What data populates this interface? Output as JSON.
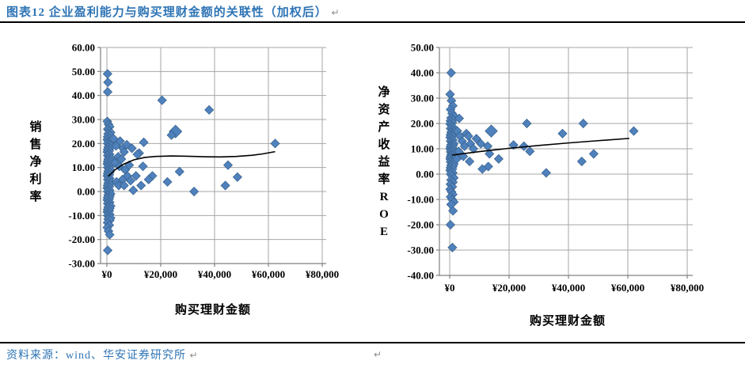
{
  "header": {
    "title": "图表12  企业盈利能力与购买理财金额的关联性（加权后）",
    "pilcrow": "↵"
  },
  "footer": {
    "source": "资料来源：wind、华安证券研究所",
    "pilcrow": "↵",
    "stray_pilcrow": "↵"
  },
  "colors": {
    "accent_blue": "#2E74B5",
    "marker_fill": "#4F81BD",
    "marker_edge": "#3A648F",
    "gridline": "#A6A6A6",
    "axis": "#808080",
    "trend": "#000000",
    "rule": "#000000",
    "pilcrow": "#8a8a8a"
  },
  "chart_data": [
    {
      "type": "scatter",
      "ylabel": "销售净利率",
      "xlabel": "购买理财金额",
      "ylim": [
        -30,
        60
      ],
      "xlim": [
        0,
        80000
      ],
      "grid": true,
      "legend": "none",
      "y_tick_values": [
        60,
        50,
        40,
        30,
        20,
        10,
        0,
        -10,
        -20,
        -30
      ],
      "y_tick_labels": [
        "60.00",
        "50.00",
        "40.00",
        "30.00",
        "20.00",
        "10.00",
        "0.00",
        "-10.00",
        "-20.00",
        "-30.00"
      ],
      "x_tick_values": [
        0,
        20000,
        40000,
        60000,
        80000
      ],
      "x_tick_labels": [
        "¥0",
        "¥20,000",
        "¥40,000",
        "¥60,000",
        "¥80,000"
      ],
      "points_strip": {
        "x_cycle": [
          150,
          600,
          1050,
          300,
          800,
          1400,
          450,
          1100,
          250,
          900
        ],
        "values": [
          29.2,
          28,
          27,
          26,
          25.3,
          24.6,
          24,
          23.4,
          22.8,
          22.2,
          21.6,
          21,
          20.5,
          20,
          19.5,
          19,
          18.5,
          18,
          17.5,
          17,
          16.5,
          16,
          15.5,
          15,
          14.5,
          14,
          13.5,
          13,
          12.5,
          12,
          11.5,
          11,
          10.5,
          10,
          9.5,
          9,
          8.5,
          8,
          7.5,
          7,
          6.5,
          6,
          5.5,
          5,
          4.5,
          4,
          3.5,
          3,
          2.5,
          2,
          1.5,
          1,
          0.5,
          0,
          -0.5,
          -1,
          -1.5,
          -2,
          -2.5,
          -3,
          -3.5,
          -4,
          -4.5,
          -5,
          -5.5,
          -6,
          -6.5,
          -7,
          -7.5,
          -8,
          -8.5,
          -9,
          -9.5,
          -10,
          -10.5,
          -11,
          -11.5,
          -12,
          -13,
          -14,
          -15,
          -16.5,
          -18,
          -24.5
        ]
      },
      "points": [
        [
          250,
          49
        ],
        [
          400,
          45.5
        ],
        [
          300,
          41.5
        ],
        [
          2500,
          22
        ],
        [
          3400,
          19
        ],
        [
          4900,
          21
        ],
        [
          6000,
          18
        ],
        [
          7400,
          19.5
        ],
        [
          9300,
          18
        ],
        [
          13700,
          20.5
        ],
        [
          12000,
          16
        ],
        [
          11300,
          15.5
        ],
        [
          6400,
          16.5
        ],
        [
          4200,
          14.5
        ],
        [
          5400,
          13.5
        ],
        [
          3000,
          12
        ],
        [
          4600,
          10.5
        ],
        [
          6800,
          9
        ],
        [
          8300,
          11
        ],
        [
          7600,
          6.5
        ],
        [
          5800,
          5
        ],
        [
          3600,
          4
        ],
        [
          4400,
          2.5
        ],
        [
          6400,
          2.5
        ],
        [
          8800,
          4.5
        ],
        [
          9800,
          0.5
        ],
        [
          10800,
          6.5
        ],
        [
          12700,
          2.5
        ],
        [
          13400,
          10.5
        ],
        [
          16900,
          6.5
        ],
        [
          15500,
          5
        ],
        [
          20500,
          38
        ],
        [
          38000,
          34
        ],
        [
          25500,
          25,
          1.45
        ],
        [
          24000,
          23.5
        ],
        [
          27000,
          8.3
        ],
        [
          22500,
          4
        ],
        [
          32400,
          0
        ],
        [
          45000,
          11
        ],
        [
          44000,
          2.5
        ],
        [
          48500,
          6
        ],
        [
          62500,
          20
        ]
      ],
      "trend": [
        [
          500,
          6.3
        ],
        [
          3000,
          9
        ],
        [
          6000,
          11.3
        ],
        [
          10000,
          13.2
        ],
        [
          14000,
          14.2
        ],
        [
          18000,
          14.6
        ],
        [
          24000,
          14.8
        ],
        [
          30000,
          14.7
        ],
        [
          36000,
          14.5
        ],
        [
          42000,
          14.4
        ],
        [
          48000,
          14.6
        ],
        [
          54000,
          15.1
        ],
        [
          58000,
          15.7
        ],
        [
          62500,
          16.6
        ]
      ]
    },
    {
      "type": "scatter",
      "ylabel": "净资产收益率ROE",
      "xlabel": "购买理财金额",
      "ylim": [
        -40,
        50
      ],
      "xlim": [
        0,
        80000
      ],
      "grid": true,
      "legend": "none",
      "y_tick_values": [
        50,
        40,
        30,
        20,
        10,
        0,
        -10,
        -20,
        -30,
        -40
      ],
      "y_tick_labels": [
        "50.00",
        "40.00",
        "30.00",
        "20.00",
        "10.00",
        "0.00",
        "-10.00",
        "-20.00",
        "-30.00",
        "-40.00"
      ],
      "x_tick_values": [
        0,
        20000,
        40000,
        60000,
        80000
      ],
      "x_tick_labels": [
        "¥0",
        "¥20,000",
        "¥40,000",
        "¥60,000",
        "¥80,000"
      ],
      "points_strip": {
        "x_cycle": [
          150,
          600,
          1050,
          300,
          800,
          1400,
          450,
          1100,
          250,
          900
        ],
        "values": [
          31.5,
          29,
          27,
          25.5,
          24,
          23,
          22.2,
          21.5,
          21,
          20.4,
          19.8,
          19.2,
          18.6,
          18,
          17.5,
          17,
          16.5,
          16,
          15.5,
          15,
          14.5,
          14,
          13.5,
          13,
          12.5,
          12,
          11.6,
          11.2,
          10.8,
          10.4,
          10,
          9.6,
          9.2,
          8.8,
          8.4,
          8,
          7.6,
          7.2,
          6.8,
          6.4,
          6,
          5.6,
          5.2,
          4.8,
          4.4,
          4,
          3.5,
          3,
          2.5,
          2,
          1.5,
          1,
          0.5,
          0,
          -0.7,
          -1.5,
          -2.3,
          -3.2,
          -4,
          -5,
          -6,
          -7,
          -8,
          -9,
          -10,
          -11,
          -12,
          -14.5,
          -20,
          -29
        ]
      },
      "points": [
        [
          500,
          40
        ],
        [
          3200,
          22
        ],
        [
          2600,
          17
        ],
        [
          3400,
          15
        ],
        [
          4200,
          13
        ],
        [
          5000,
          11
        ],
        [
          3000,
          9
        ],
        [
          4600,
          7
        ],
        [
          2400,
          6
        ],
        [
          5600,
          16
        ],
        [
          6300,
          15
        ],
        [
          7000,
          12
        ],
        [
          8000,
          10
        ],
        [
          9000,
          14
        ],
        [
          10500,
          12
        ],
        [
          12800,
          11
        ],
        [
          14000,
          17,
          1.4
        ],
        [
          21500,
          11.5
        ],
        [
          25000,
          11
        ],
        [
          26000,
          20
        ],
        [
          27000,
          9
        ],
        [
          32500,
          0.5
        ],
        [
          38000,
          16
        ],
        [
          44500,
          5
        ],
        [
          45000,
          20
        ],
        [
          48500,
          8
        ],
        [
          13400,
          8
        ],
        [
          16500,
          6
        ],
        [
          6700,
          5
        ],
        [
          11000,
          2
        ],
        [
          13000,
          3
        ],
        [
          62000,
          17
        ]
      ],
      "trend": [
        [
          800,
          7.5
        ],
        [
          10000,
          8.9
        ],
        [
          20000,
          10.2
        ],
        [
          30000,
          11.3
        ],
        [
          40000,
          12.3
        ],
        [
          50000,
          13.2
        ],
        [
          60500,
          14.1
        ]
      ]
    }
  ]
}
